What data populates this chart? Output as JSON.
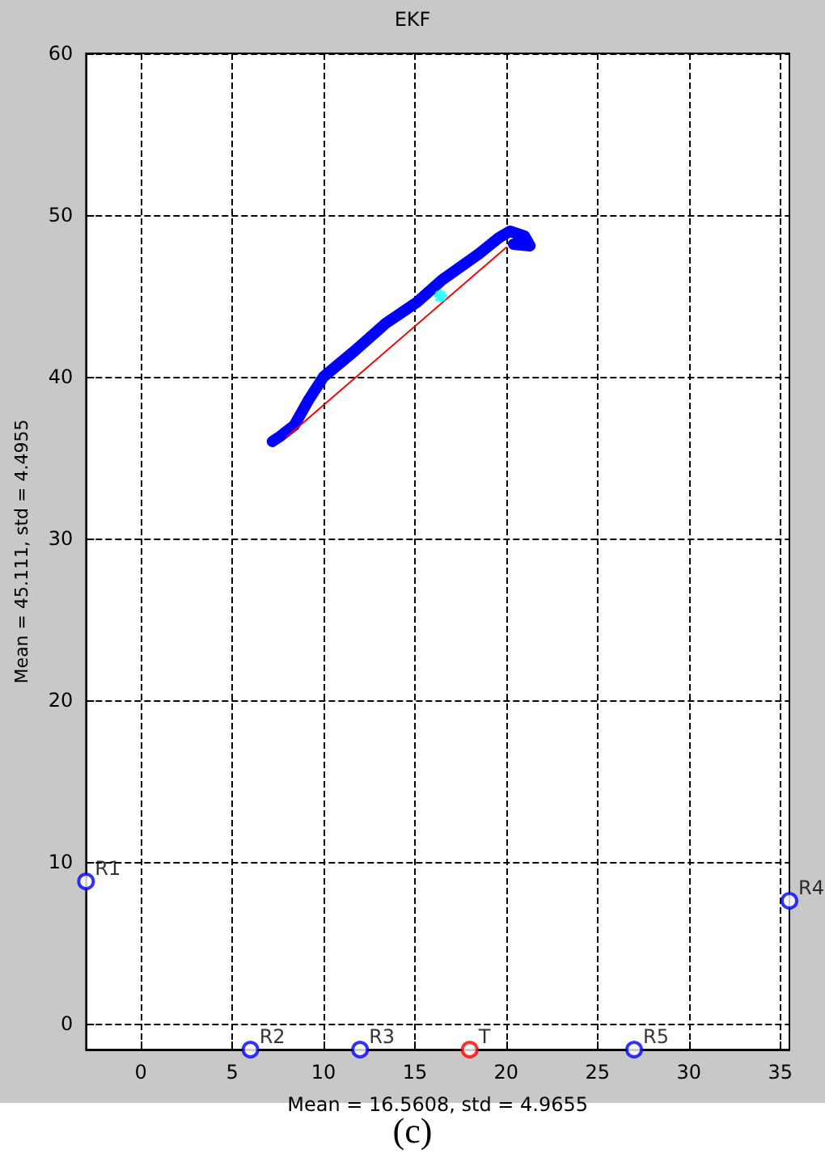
{
  "chart_data": {
    "type": "scatter",
    "title": "EKF",
    "xlabel": "Mean = 16.5608, std = 4.9655",
    "ylabel": "Mean = 45.111, std = 4.4955",
    "annotations": [
      "(c)"
    ],
    "xlim": [
      -3,
      35.5
    ],
    "xticks": [
      0,
      5,
      10,
      15,
      20,
      25,
      30,
      35
    ],
    "ylim": [
      -1.6,
      60
    ],
    "yticks": [
      0,
      10,
      20,
      30,
      40,
      50,
      60
    ],
    "grid": true,
    "series": [
      {
        "type": "line",
        "color": "#0000ff",
        "marker": "none",
        "x": [
          7.2,
          7.6,
          8.4,
          9.2,
          10.0,
          11.7,
          13.4,
          15.1,
          16.5,
          18.5,
          19.6,
          20.2,
          21.0,
          21.3,
          20.4
        ],
        "values": [
          36.0,
          36.3,
          37.0,
          38.6,
          40.0,
          41.6,
          43.3,
          44.6,
          46.0,
          47.6,
          48.6,
          49.0,
          48.7,
          48.1,
          48.2
        ]
      },
      {
        "type": "line",
        "color": "#ff0000",
        "marker": "none",
        "x": [
          8.0,
          20.0
        ],
        "values": [
          36.3,
          48.0
        ]
      },
      {
        "color": "#00ffff",
        "marker": "cross",
        "x": [
          16.4
        ],
        "values": [
          45.0
        ]
      },
      {
        "color": "#0000ff",
        "marker": "circle",
        "x": [
          -3,
          6.0,
          12.0,
          35.5,
          27.0
        ],
        "values": [
          8.8,
          -1.6,
          -1.6,
          7.6,
          -1.6
        ],
        "value_labels": [
          "R1",
          "R2",
          "R3",
          "R4",
          "R5"
        ]
      },
      {
        "color": "#ff0000",
        "marker": "circle",
        "x": [
          18.0
        ],
        "values": [
          -1.6
        ],
        "value_labels": [
          "T"
        ]
      }
    ]
  }
}
